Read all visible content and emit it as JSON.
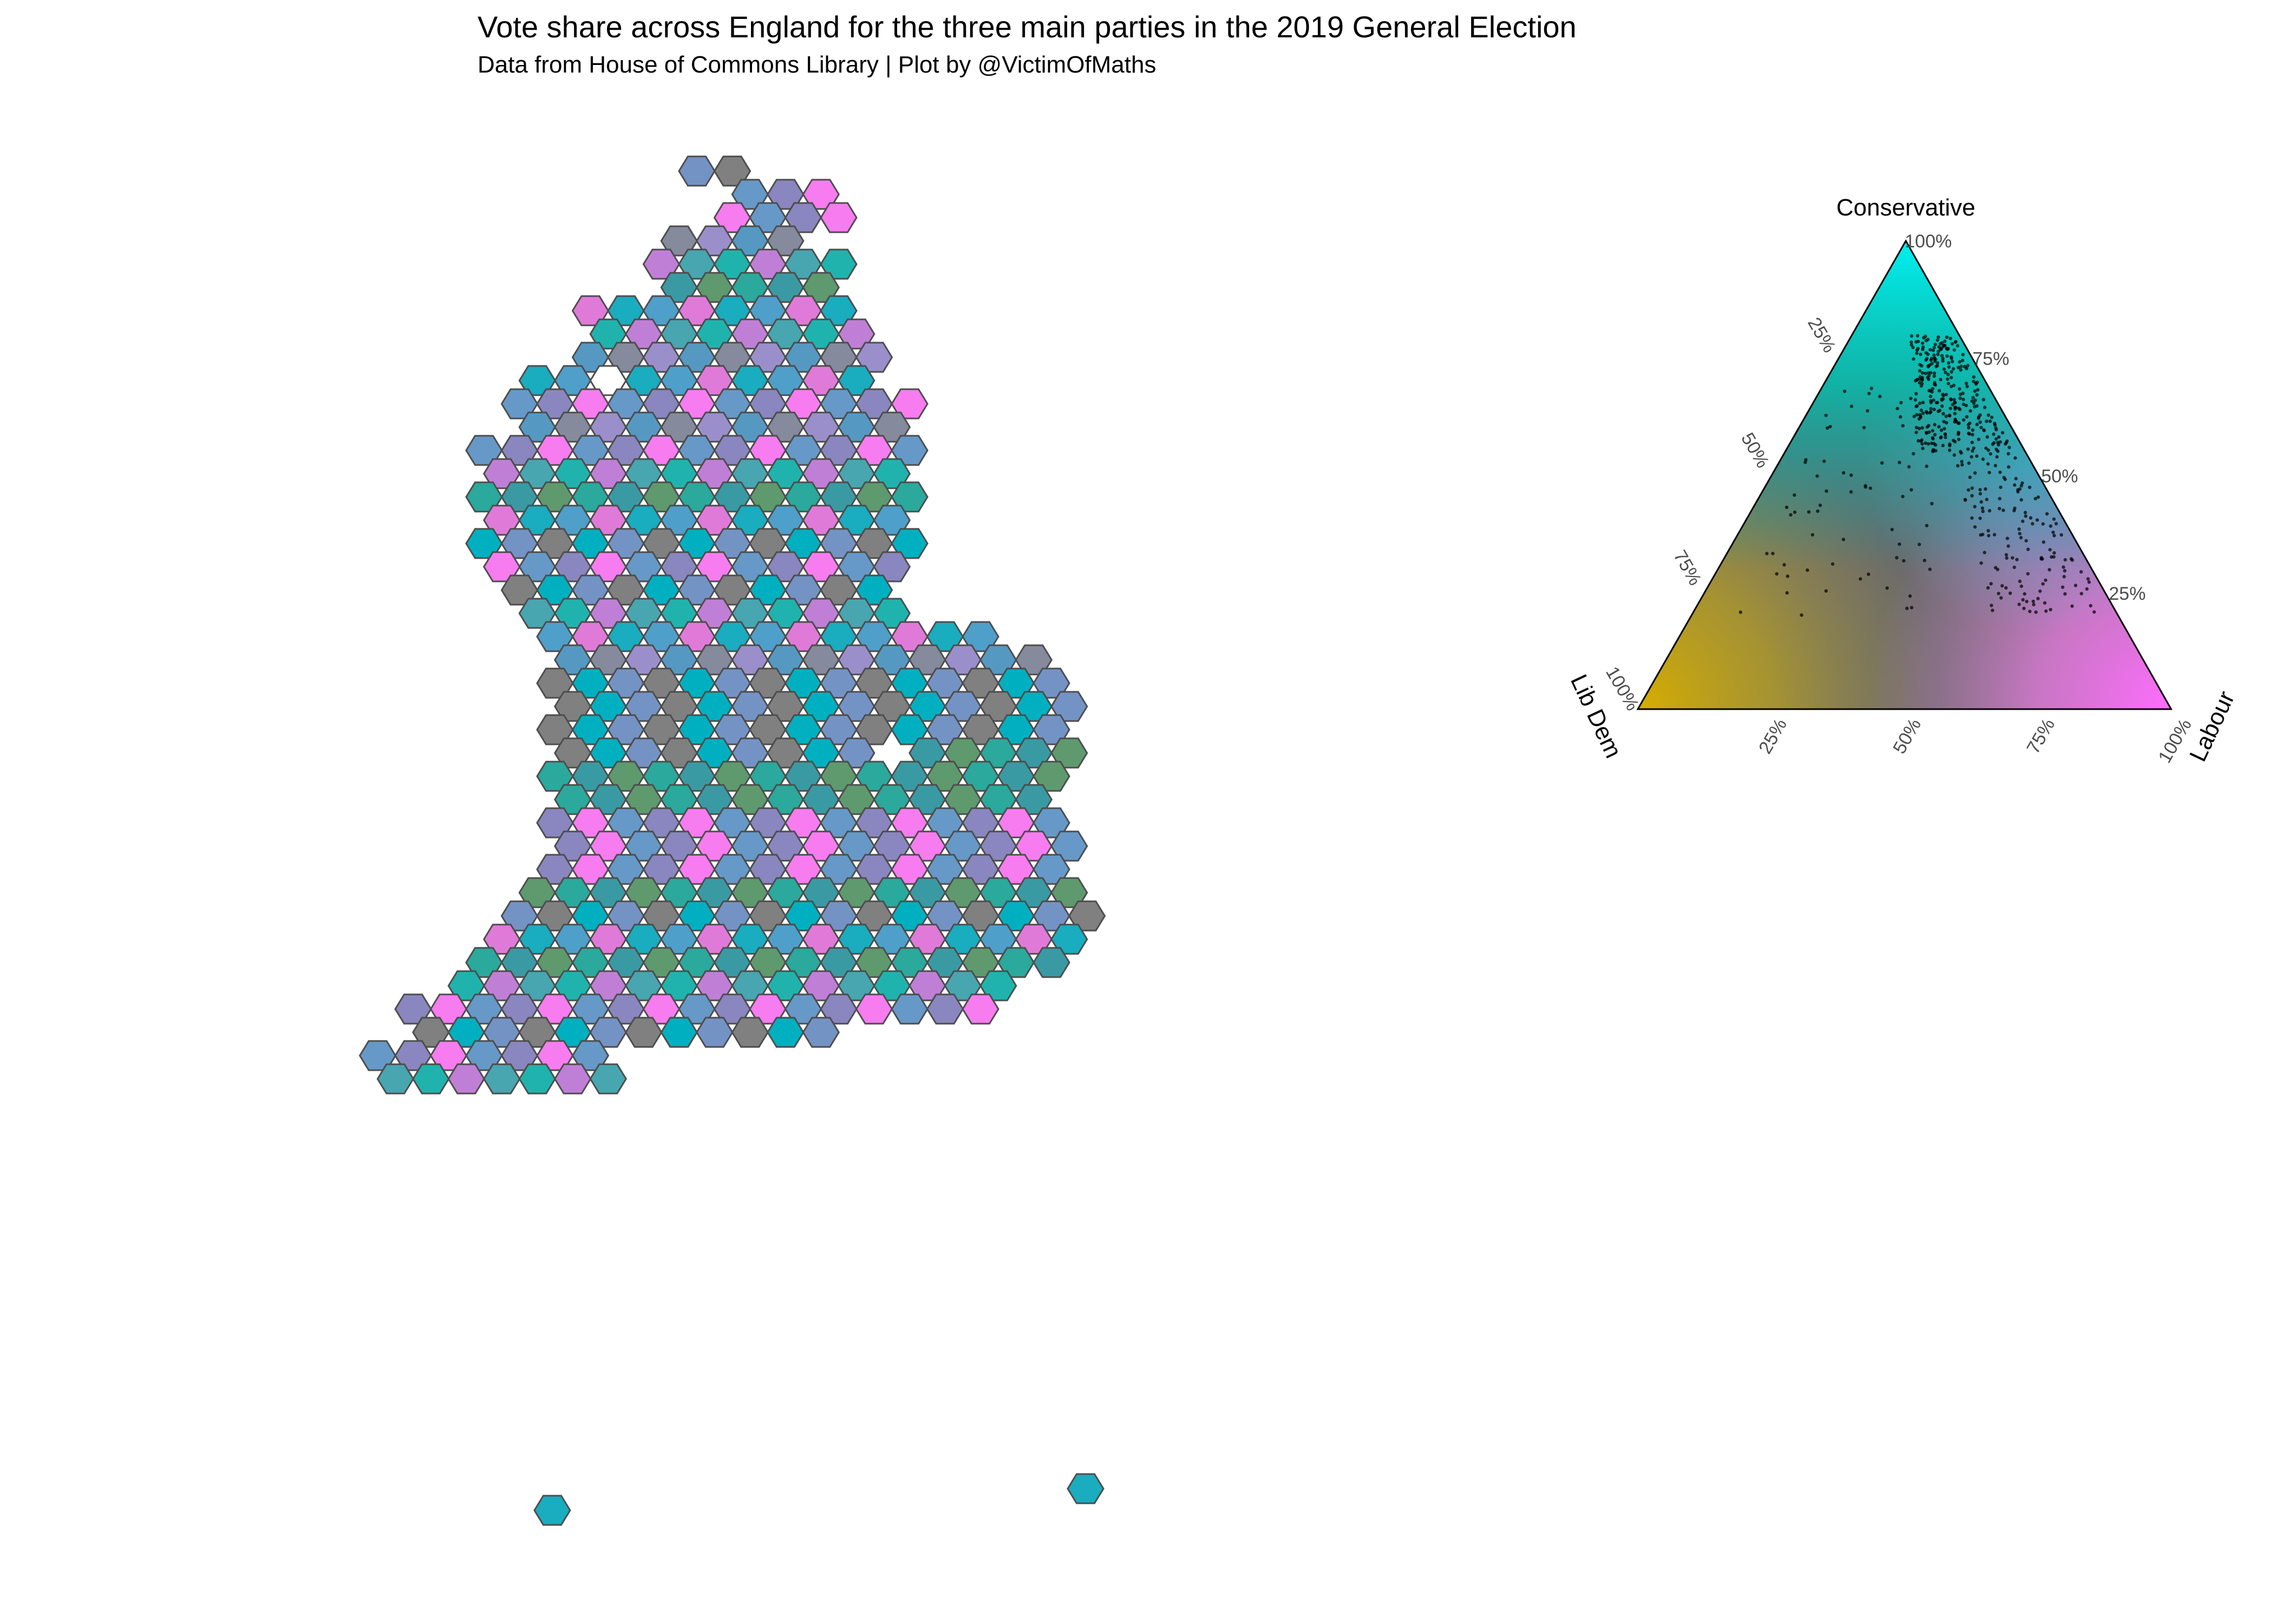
{
  "header": {
    "title": "Vote share across England for the three main parties in the 2019 General Election",
    "subtitle": "Data from House of Commons Library | Plot by @VictimOfMaths"
  },
  "map": {
    "hex_fill_colors": [
      "#8a86bf",
      "#3a9aa3",
      "#7493c5",
      "#5599c3",
      "#47a6b0",
      "#1aacbf",
      "#6699c8",
      "#2aa99c",
      "#00b0c0",
      "#9b8fcb",
      "#c07fd6",
      "#e07ad9",
      "#f77cf0",
      "#5e9a6e",
      "#808080",
      "#858a9c",
      "#20b3ad",
      "#4f9fcb"
    ],
    "hex_outline_color": "#4d4d4d",
    "gap_color": "#ffffff"
  },
  "ternary": {
    "title_top": "Conservative",
    "label_left": "Lib Dem",
    "label_right": "Labour",
    "ticks": [
      "25%",
      "50%",
      "75%",
      "100%"
    ],
    "corner_colors": {
      "conservative": "#00f0f0",
      "lib_dem": "#d6ad00",
      "labour": "#ff6cff",
      "centre": "#666666"
    },
    "point_color": "#000000"
  }
}
